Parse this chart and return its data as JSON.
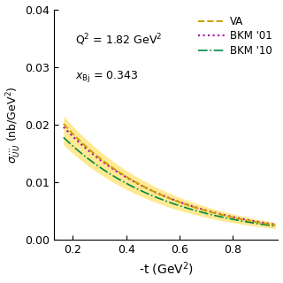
{
  "xlabel": "-t (GeV$^2$)",
  "ylabel": "$\\sigma_{UU}^{\\cdots}$ (nb/GeV$^{-1}$)",
  "xlim": [
    0.13,
    0.97
  ],
  "ylim": [
    0,
    0.04
  ],
  "xticks": [
    0.2,
    0.4,
    0.6,
    0.8
  ],
  "yticks": [
    0,
    0.01,
    0.02,
    0.03,
    0.04
  ],
  "annotation1": "Q$^2$ = 1.82 GeV$^2$",
  "annotation2": "$x_{\\mathrm{Bj}}$ = 0.343",
  "t_min": 0.165,
  "t_max": 0.96,
  "n_points": 300,
  "VA_color": "#C8A000",
  "BKM01_color": "#AA00AA",
  "BKM10_color": "#008844",
  "band_color": "#FFE066",
  "band_alpha": 0.7,
  "VA_A": 0.02015,
  "VA_b": 2.58,
  "BKM01_A": 0.0196,
  "BKM01_b": 2.5,
  "BKM10_A": 0.0178,
  "BKM10_b": 2.52,
  "band_upper_A": 0.0215,
  "band_upper_b": 2.45,
  "band_lower_A": 0.0165,
  "band_lower_b": 2.68,
  "legend_VA": "VA",
  "legend_BKM01": "BKM '01",
  "legend_BKM10": "BKM '10"
}
